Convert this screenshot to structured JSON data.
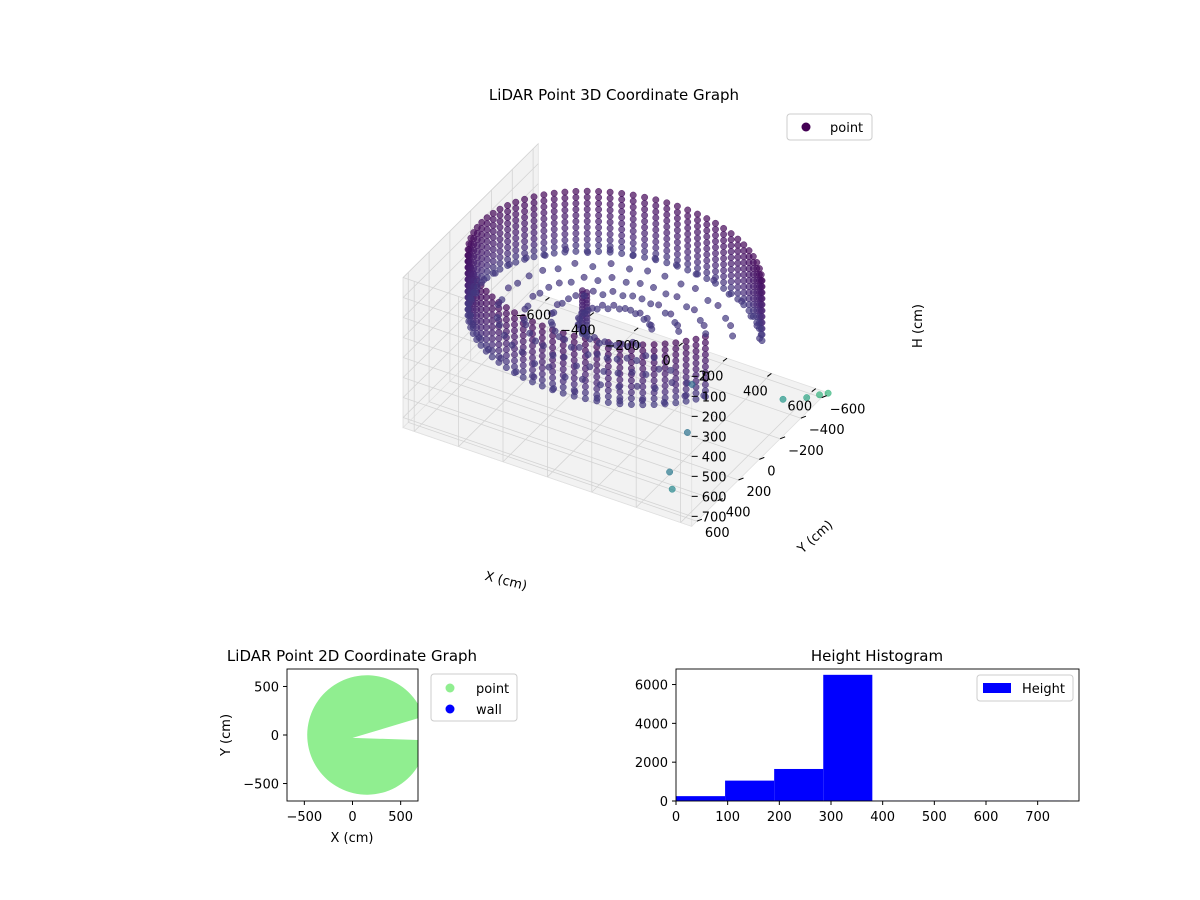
{
  "colors": {
    "viridis_dark": "#440154",
    "viridis_mid": "#3b528b",
    "viridis_teal": "#21918c",
    "viridis_green": "#35b779",
    "point_2d": "#90ee90",
    "wall_2d": "#0000ff",
    "hist_bar": "#0000ff",
    "pane": "#f2f2f2"
  },
  "chart_data": [
    {
      "type": "scatter",
      "projection": "3d",
      "title": "LiDAR Point 3D Coordinate Graph",
      "xlabel": "X (cm)",
      "ylabel": "Y (cm)",
      "zlabel": "H (cm)",
      "xlim": [
        -650,
        650
      ],
      "ylim": [
        -650,
        650
      ],
      "zlim": [
        0,
        750
      ],
      "z_inverted": true,
      "xticks": [
        -600,
        -400,
        -200,
        0,
        200,
        400,
        600
      ],
      "yticks": [
        -600,
        -400,
        -200,
        0,
        200,
        400,
        600
      ],
      "zticks": [
        0,
        100,
        200,
        300,
        400,
        500,
        600,
        700
      ],
      "legend": {
        "placement": "top-right",
        "entries": [
          "point"
        ]
      },
      "grid": true,
      "colormap": "viridis",
      "series": [
        {
          "name": "point",
          "shape": "cylindrical wall with floor",
          "wall_radius_cm": 600,
          "wall_height_range_cm": [
            40,
            360
          ],
          "floor_height_cm": 330,
          "opening_angle_deg": [
            -25,
            25
          ],
          "central_object": {
            "x": -100,
            "y": 100,
            "h_range": [
              140,
              360
            ]
          },
          "outlier_points": [
            {
              "x": 620,
              "y": -520,
              "h": 720
            },
            {
              "x": 640,
              "y": -600,
              "h": 740
            },
            {
              "x": 660,
              "y": -640,
              "h": 745
            },
            {
              "x": 560,
              "y": -420,
              "h": 700
            },
            {
              "x": 300,
              "y": -100,
              "h": 560
            },
            {
              "x": 420,
              "y": 200,
              "h": 600
            },
            {
              "x": 480,
              "y": 500,
              "h": 620
            },
            {
              "x": 520,
              "y": 560,
              "h": 660
            }
          ]
        }
      ]
    },
    {
      "type": "scatter",
      "title": "LiDAR Point 2D Coordinate Graph",
      "xlabel": "X (cm)",
      "ylabel": "Y (cm)",
      "xlim": [
        -680,
        680
      ],
      "ylim": [
        -680,
        680
      ],
      "xticks": [
        -500,
        0,
        500
      ],
      "yticks": [
        -500,
        0,
        500
      ],
      "legend": {
        "placement": "outside-right",
        "entries": [
          "point",
          "wall"
        ]
      },
      "series": [
        {
          "name": "point",
          "shape": "filled disk",
          "center": [
            150,
            0
          ],
          "radius": 620,
          "opening_angle_deg": [
            -5,
            18
          ]
        },
        {
          "name": "wall",
          "count": 0
        }
      ]
    },
    {
      "type": "bar",
      "title": "Height Histogram",
      "xlim": [
        0,
        780
      ],
      "ylim": [
        0,
        6800
      ],
      "xticks": [
        0,
        100,
        200,
        300,
        400,
        500,
        600,
        700
      ],
      "yticks": [
        0,
        2000,
        4000,
        6000
      ],
      "legend": {
        "placement": "top-right",
        "entries": [
          "Height"
        ]
      },
      "series": [
        {
          "name": "Height",
          "bin_edges": [
            0,
            95,
            190,
            285,
            380,
            475,
            570,
            665,
            760
          ],
          "values": [
            250,
            1050,
            1650,
            6500,
            20,
            20,
            20,
            20
          ]
        }
      ]
    }
  ]
}
